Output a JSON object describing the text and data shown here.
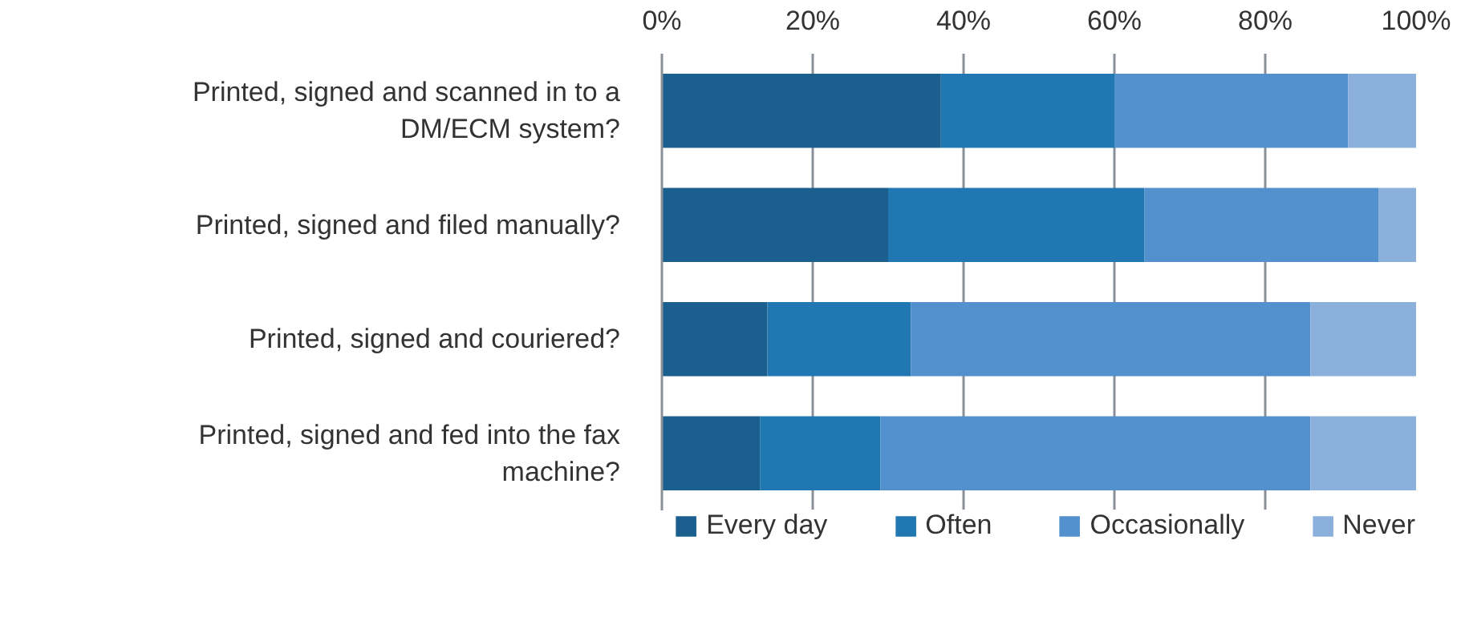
{
  "chart_data": {
    "type": "bar",
    "orientation": "horizontal",
    "stacked": true,
    "categories": [
      "Printed, signed and scanned in to a DM/ECM system?",
      "Printed, signed and filed manually?",
      "Printed, signed and couriered?",
      "Printed, signed and fed into the fax machine?"
    ],
    "series": [
      {
        "name": "Every day",
        "color": "#1b5f8e",
        "values": [
          37,
          30,
          14,
          13
        ]
      },
      {
        "name": "Often",
        "color": "#2077b2",
        "values": [
          23,
          34,
          19,
          16
        ]
      },
      {
        "name": "Occasionally",
        "color": "#5291cd",
        "values": [
          31,
          31,
          53,
          57
        ]
      },
      {
        "name": "Never",
        "color": "#8cb0dc",
        "values": [
          9,
          5,
          14,
          14
        ]
      }
    ],
    "xlim": [
      0,
      100
    ],
    "xticks": [
      {
        "value": 0,
        "label": "0%"
      },
      {
        "value": 20,
        "label": "20%"
      },
      {
        "value": 40,
        "label": "40%"
      },
      {
        "value": 60,
        "label": "60%"
      },
      {
        "value": 80,
        "label": "80%"
      },
      {
        "value": 100,
        "label": "100%"
      }
    ],
    "grid": "x",
    "legend": "bottom"
  }
}
